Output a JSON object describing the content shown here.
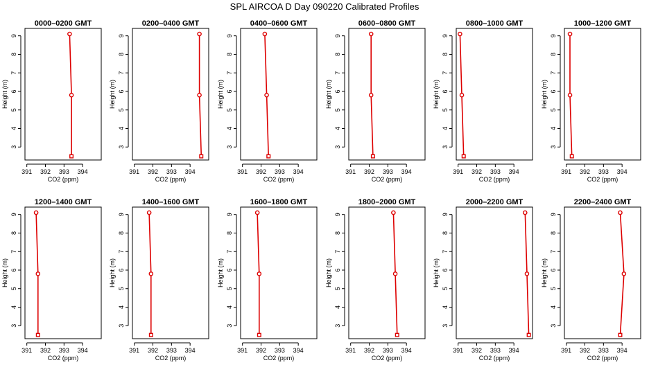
{
  "figure": {
    "title": "SPL AIRCOA D  Day 090220  Calibrated Profiles"
  },
  "chart_data": [
    {
      "type": "line",
      "title": "0000–0200 GMT",
      "xlabel": "CO2 (ppm)",
      "ylabel": "Height (m)",
      "xlim": [
        390.9,
        395.0
      ],
      "ylim": [
        2.3,
        9.4
      ],
      "xticks": [
        391,
        392,
        393,
        394
      ],
      "yticks": [
        3,
        4,
        5,
        6,
        7,
        8,
        9
      ],
      "x": [
        393.3,
        393.4,
        393.4
      ],
      "y": [
        9.1,
        5.8,
        2.5
      ],
      "color": "#dd0000"
    },
    {
      "type": "line",
      "title": "0200–0400 GMT",
      "xlabel": "CO2 (ppm)",
      "ylabel": "Height (m)",
      "xlim": [
        390.9,
        395.0
      ],
      "ylim": [
        2.3,
        9.4
      ],
      "xticks": [
        391,
        392,
        393,
        394
      ],
      "yticks": [
        3,
        4,
        5,
        6,
        7,
        8,
        9
      ],
      "x": [
        394.5,
        394.5,
        394.6
      ],
      "y": [
        9.1,
        5.8,
        2.5
      ],
      "color": "#dd0000"
    },
    {
      "type": "line",
      "title": "0400–0600 GMT",
      "xlabel": "CO2 (ppm)",
      "ylabel": "Height (m)",
      "xlim": [
        390.9,
        395.0
      ],
      "ylim": [
        2.3,
        9.4
      ],
      "xticks": [
        391,
        392,
        393,
        394
      ],
      "yticks": [
        3,
        4,
        5,
        6,
        7,
        8,
        9
      ],
      "x": [
        392.2,
        392.3,
        392.4
      ],
      "y": [
        9.1,
        5.8,
        2.5
      ],
      "color": "#dd0000"
    },
    {
      "type": "line",
      "title": "0600–0800 GMT",
      "xlabel": "CO2 (ppm)",
      "ylabel": "Height (m)",
      "xlim": [
        390.9,
        395.0
      ],
      "ylim": [
        2.3,
        9.4
      ],
      "xticks": [
        391,
        392,
        393,
        394
      ],
      "yticks": [
        3,
        4,
        5,
        6,
        7,
        8,
        9
      ],
      "x": [
        392.1,
        392.1,
        392.2
      ],
      "y": [
        9.1,
        5.8,
        2.5
      ],
      "color": "#dd0000"
    },
    {
      "type": "line",
      "title": "0800–1000 GMT",
      "xlabel": "CO2 (ppm)",
      "ylabel": "Height (m)",
      "xlim": [
        390.9,
        395.0
      ],
      "ylim": [
        2.3,
        9.4
      ],
      "xticks": [
        391,
        392,
        393,
        394
      ],
      "yticks": [
        3,
        4,
        5,
        6,
        7,
        8,
        9
      ],
      "x": [
        391.1,
        391.2,
        391.3
      ],
      "y": [
        9.1,
        5.8,
        2.5
      ],
      "color": "#dd0000"
    },
    {
      "type": "line",
      "title": "1000–1200 GMT",
      "xlabel": "CO2 (ppm)",
      "ylabel": "Height (m)",
      "xlim": [
        390.9,
        395.0
      ],
      "ylim": [
        2.3,
        9.4
      ],
      "xticks": [
        391,
        392,
        393,
        394
      ],
      "yticks": [
        3,
        4,
        5,
        6,
        7,
        8,
        9
      ],
      "x": [
        391.2,
        391.2,
        391.3
      ],
      "y": [
        9.1,
        5.8,
        2.5
      ],
      "color": "#dd0000"
    },
    {
      "type": "line",
      "title": "1200–1400 GMT",
      "xlabel": "CO2 (ppm)",
      "ylabel": "Height (m)",
      "xlim": [
        390.9,
        395.0
      ],
      "ylim": [
        2.3,
        9.4
      ],
      "xticks": [
        391,
        392,
        393,
        394
      ],
      "yticks": [
        3,
        4,
        5,
        6,
        7,
        8,
        9
      ],
      "x": [
        391.5,
        391.6,
        391.6
      ],
      "y": [
        9.1,
        5.8,
        2.5
      ],
      "color": "#dd0000"
    },
    {
      "type": "line",
      "title": "1400–1600 GMT",
      "xlabel": "CO2 (ppm)",
      "ylabel": "Height (m)",
      "xlim": [
        390.9,
        395.0
      ],
      "ylim": [
        2.3,
        9.4
      ],
      "xticks": [
        391,
        392,
        393,
        394
      ],
      "yticks": [
        3,
        4,
        5,
        6,
        7,
        8,
        9
      ],
      "x": [
        391.8,
        391.9,
        391.9
      ],
      "y": [
        9.1,
        5.8,
        2.5
      ],
      "color": "#dd0000"
    },
    {
      "type": "line",
      "title": "1600–1800 GMT",
      "xlabel": "CO2 (ppm)",
      "ylabel": "Height (m)",
      "xlim": [
        390.9,
        395.0
      ],
      "ylim": [
        2.3,
        9.4
      ],
      "xticks": [
        391,
        392,
        393,
        394
      ],
      "yticks": [
        3,
        4,
        5,
        6,
        7,
        8,
        9
      ],
      "x": [
        391.8,
        391.9,
        391.9
      ],
      "y": [
        9.1,
        5.8,
        2.5
      ],
      "color": "#dd0000"
    },
    {
      "type": "line",
      "title": "1800–2000 GMT",
      "xlabel": "CO2 (ppm)",
      "ylabel": "Height (m)",
      "xlim": [
        390.9,
        395.0
      ],
      "ylim": [
        2.3,
        9.4
      ],
      "xticks": [
        391,
        392,
        393,
        394
      ],
      "yticks": [
        3,
        4,
        5,
        6,
        7,
        8,
        9
      ],
      "x": [
        393.3,
        393.4,
        393.5
      ],
      "y": [
        9.1,
        5.8,
        2.5
      ],
      "color": "#dd0000"
    },
    {
      "type": "line",
      "title": "2000–2200 GMT",
      "xlabel": "CO2 (ppm)",
      "ylabel": "Height (m)",
      "xlim": [
        390.9,
        395.0
      ],
      "ylim": [
        2.3,
        9.4
      ],
      "xticks": [
        391,
        392,
        393,
        394
      ],
      "yticks": [
        3,
        4,
        5,
        6,
        7,
        8,
        9
      ],
      "x": [
        394.6,
        394.7,
        394.8
      ],
      "y": [
        9.1,
        5.8,
        2.5
      ],
      "color": "#dd0000"
    },
    {
      "type": "line",
      "title": "2200–2400 GMT",
      "xlabel": "CO2 (ppm)",
      "ylabel": "Height (m)",
      "xlim": [
        390.9,
        395.0
      ],
      "ylim": [
        2.3,
        9.4
      ],
      "xticks": [
        391,
        392,
        393,
        394
      ],
      "yticks": [
        3,
        4,
        5,
        6,
        7,
        8,
        9
      ],
      "x": [
        393.9,
        394.1,
        393.9
      ],
      "y": [
        9.1,
        5.8,
        2.5
      ],
      "color": "#dd0000"
    }
  ]
}
